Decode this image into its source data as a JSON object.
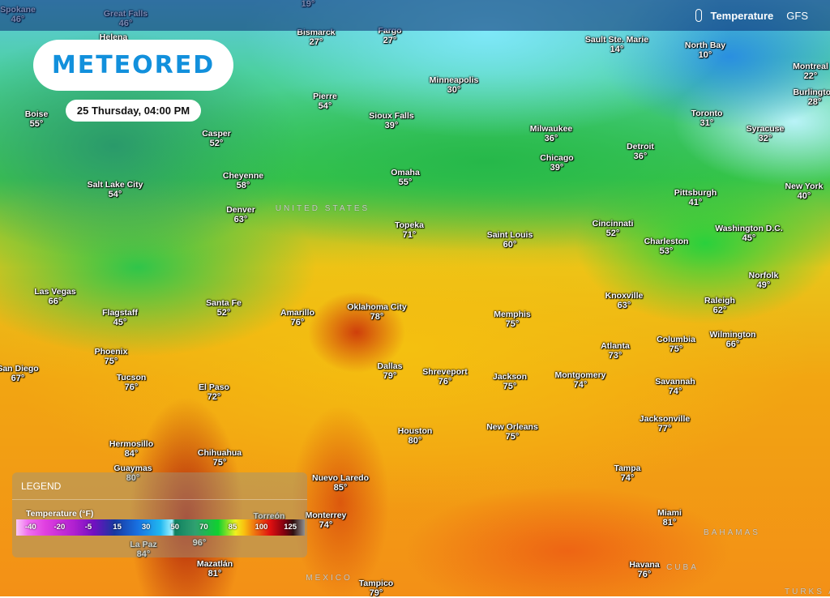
{
  "header": {
    "layer_icon": "thermometer-icon",
    "layer": "Temperature",
    "model": "GFS"
  },
  "brand": {
    "logo_text": "METEORED"
  },
  "datetime": "25 Thursday, 04:00 PM",
  "legend": {
    "title": "LEGEND",
    "scale_title": "Temperature (°F)",
    "ticks": [
      "-40",
      "-20",
      "-5",
      "15",
      "30",
      "50",
      "70",
      "85",
      "100",
      "125"
    ]
  },
  "cities": [
    {
      "name": "Spokane",
      "temp": "46°"
    },
    {
      "name": "Great Falls",
      "temp": "46°"
    },
    {
      "name": "Helena",
      "temp": ""
    },
    {
      "name": "",
      "temp": "19°"
    },
    {
      "name": "Bismarck",
      "temp": "27°"
    },
    {
      "name": "Fargo",
      "temp": "27°"
    },
    {
      "name": "Sault Ste. Marie",
      "temp": "14°"
    },
    {
      "name": "North Bay",
      "temp": "10°"
    },
    {
      "name": "Montreal",
      "temp": "22°"
    },
    {
      "name": "Burlington",
      "temp": "28°"
    },
    {
      "name": "Minneapolis",
      "temp": "30°"
    },
    {
      "name": "Pierre",
      "temp": "54°"
    },
    {
      "name": "Sioux Falls",
      "temp": "39°"
    },
    {
      "name": "Boise",
      "temp": "55°"
    },
    {
      "name": "Casper",
      "temp": "52°"
    },
    {
      "name": "Milwaukee",
      "temp": "36°"
    },
    {
      "name": "Toronto",
      "temp": "31°"
    },
    {
      "name": "Syracuse",
      "temp": "32°"
    },
    {
      "name": "Detroit",
      "temp": "36°"
    },
    {
      "name": "Chicago",
      "temp": "39°"
    },
    {
      "name": "Cheyenne",
      "temp": "58°"
    },
    {
      "name": "Omaha",
      "temp": "55°"
    },
    {
      "name": "Salt Lake City",
      "temp": "54°"
    },
    {
      "name": "Pittsburgh",
      "temp": "41°"
    },
    {
      "name": "New York",
      "temp": "40°"
    },
    {
      "name": "Denver",
      "temp": "63°"
    },
    {
      "name": "Topeka",
      "temp": "71°"
    },
    {
      "name": "Saint Louis",
      "temp": "60°"
    },
    {
      "name": "Cincinnati",
      "temp": "52°"
    },
    {
      "name": "Charleston",
      "temp": "53°"
    },
    {
      "name": "Washington D.C.",
      "temp": "45°"
    },
    {
      "name": "Las Vegas",
      "temp": "66°"
    },
    {
      "name": "Santa Fe",
      "temp": "52°"
    },
    {
      "name": "Norfolk",
      "temp": "49°"
    },
    {
      "name": "Oklahoma City",
      "temp": "78°"
    },
    {
      "name": "Amarillo",
      "temp": "76°"
    },
    {
      "name": "Flagstaff",
      "temp": "45°"
    },
    {
      "name": "Memphis",
      "temp": "75°"
    },
    {
      "name": "Knoxville",
      "temp": "63°"
    },
    {
      "name": "Raleigh",
      "temp": "62°"
    },
    {
      "name": "Wilmington",
      "temp": "66°"
    },
    {
      "name": "Phoenix",
      "temp": "75°"
    },
    {
      "name": "Columbia",
      "temp": "75°"
    },
    {
      "name": "Atlanta",
      "temp": "73°"
    },
    {
      "name": "San Diego",
      "temp": "67°"
    },
    {
      "name": "Dallas",
      "temp": "79°"
    },
    {
      "name": "Shreveport",
      "temp": "76°"
    },
    {
      "name": "Jackson",
      "temp": "75°"
    },
    {
      "name": "Montgomery",
      "temp": "74°"
    },
    {
      "name": "Tucson",
      "temp": "76°"
    },
    {
      "name": "Savannah",
      "temp": "74°"
    },
    {
      "name": "El Paso",
      "temp": "72°"
    },
    {
      "name": "Jacksonville",
      "temp": "77°"
    },
    {
      "name": "Houston",
      "temp": "80°"
    },
    {
      "name": "New Orleans",
      "temp": "75°"
    },
    {
      "name": "Hermosillo",
      "temp": "84°"
    },
    {
      "name": "Chihuahua",
      "temp": "75°"
    },
    {
      "name": "Guaymas",
      "temp": "80°"
    },
    {
      "name": "Tampa",
      "temp": "74°"
    },
    {
      "name": "Nuevo Laredo",
      "temp": "85°"
    },
    {
      "name": "Monterrey",
      "temp": "74°"
    },
    {
      "name": "Torreón",
      "temp": ""
    },
    {
      "name": "Miami",
      "temp": "81°"
    },
    {
      "name": "",
      "temp": "96°"
    },
    {
      "name": "La Paz",
      "temp": "84°"
    },
    {
      "name": "Mazatlán",
      "temp": "81°"
    },
    {
      "name": "Havana",
      "temp": "76°"
    },
    {
      "name": "Tampico",
      "temp": "79°"
    }
  ],
  "countries": [
    "UNITED STATES",
    "MEXICO",
    "BAHAMAS",
    "CUBA",
    "TURKS AN"
  ]
}
